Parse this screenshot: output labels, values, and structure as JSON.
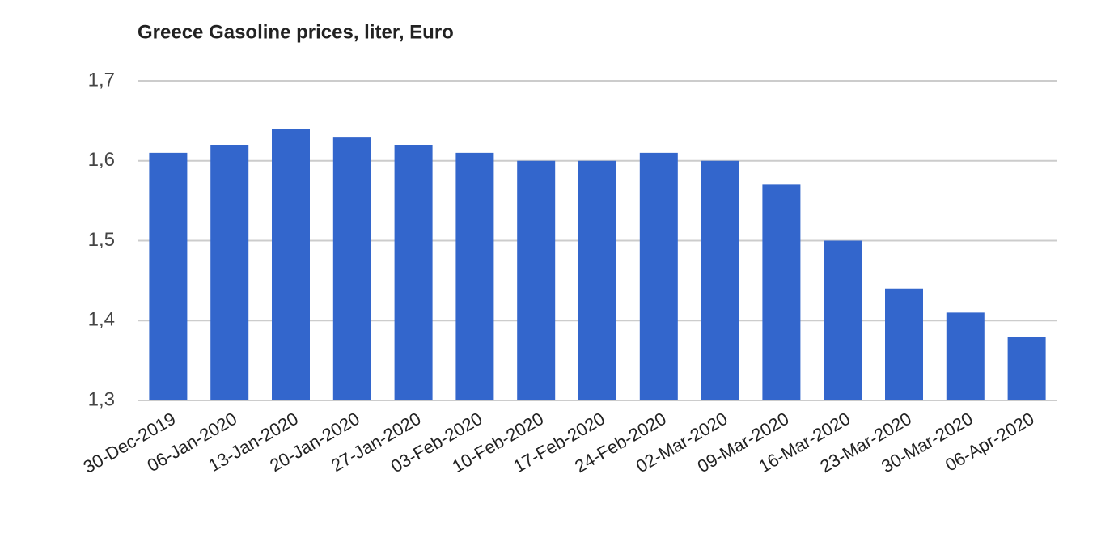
{
  "chart_data": {
    "type": "bar",
    "title": "Greece Gasoline prices, liter, Euro",
    "categories": [
      "30-Dec-2019",
      "06-Jan-2020",
      "13-Jan-2020",
      "20-Jan-2020",
      "27-Jan-2020",
      "03-Feb-2020",
      "10-Feb-2020",
      "17-Feb-2020",
      "24-Feb-2020",
      "02-Mar-2020",
      "09-Mar-2020",
      "16-Mar-2020",
      "23-Mar-2020",
      "30-Mar-2020",
      "06-Apr-2020"
    ],
    "values": [
      1.61,
      1.62,
      1.64,
      1.63,
      1.62,
      1.61,
      1.6,
      1.6,
      1.61,
      1.6,
      1.57,
      1.5,
      1.44,
      1.41,
      1.38
    ],
    "color": "#3366cc",
    "ylim": [
      1.3,
      1.7
    ],
    "yticks": [
      {
        "value": 1.3,
        "label": "1,3"
      },
      {
        "value": 1.4,
        "label": "1,4"
      },
      {
        "value": 1.5,
        "label": "1,5"
      },
      {
        "value": 1.6,
        "label": "1,6"
      },
      {
        "value": 1.7,
        "label": "1,7"
      }
    ],
    "grid": true
  }
}
